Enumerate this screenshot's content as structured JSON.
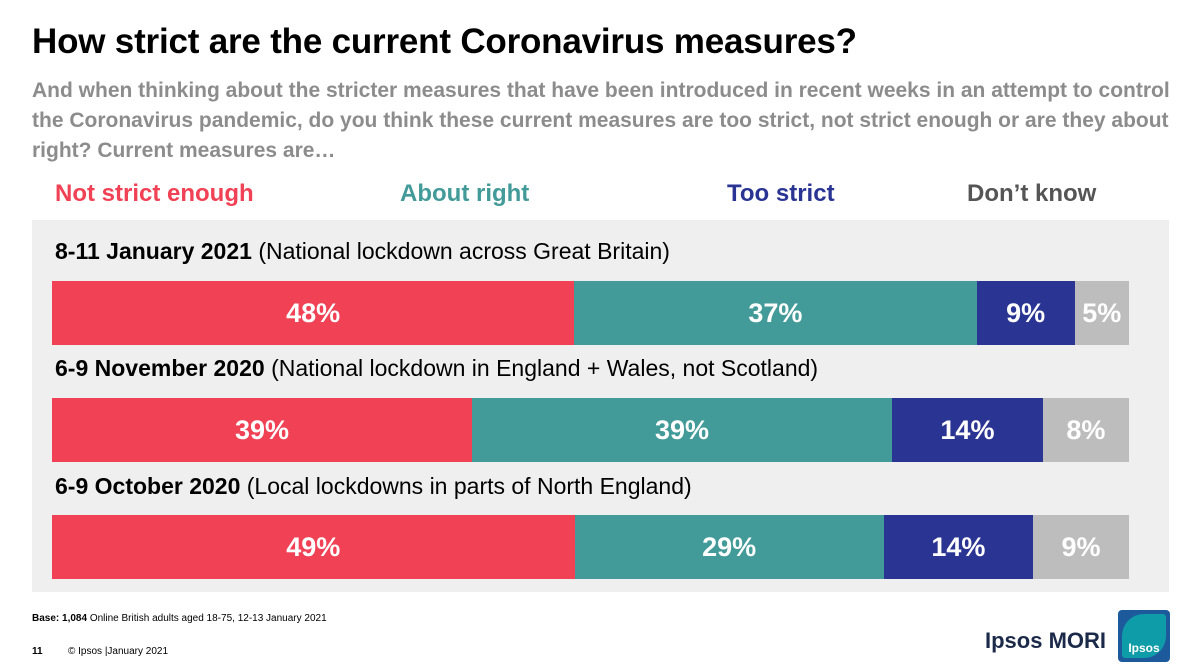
{
  "title": "How strict are the current Coronavirus measures?",
  "subtitle": "And when thinking about the stricter measures that have been introduced in recent weeks in an attempt to control the Coronavirus pandemic, do you think these current measures are too strict, not strict enough or are they about right? Current measures are…",
  "colors": {
    "not_strict_enough": "#f04155",
    "about_right": "#429b99",
    "too_strict": "#2a3593",
    "dont_know": "#bdbdbd",
    "dont_know_label": "#555555",
    "panel_bg": "#efefef"
  },
  "chart_data": {
    "type": "bar",
    "orientation": "horizontal",
    "stacked": true,
    "unit": "%",
    "legend_position": "top",
    "categories": [
      {
        "bold": "8-11 January 2021",
        "note": "(National lockdown across Great Britain)"
      },
      {
        "bold": "6-9 November 2020",
        "note": "(National lockdown in England + Wales, not Scotland)"
      },
      {
        "bold": "6-9 October 2020",
        "note": "(Local lockdowns in parts of North England)"
      }
    ],
    "series": [
      {
        "name": "Not strict enough",
        "values": [
          48,
          39,
          49
        ],
        "labels": [
          "48%",
          "39%",
          "49%"
        ]
      },
      {
        "name": "About right",
        "values": [
          37,
          39,
          29
        ],
        "labels": [
          "37%",
          "39%",
          "29%"
        ]
      },
      {
        "name": "Too strict",
        "values": [
          9,
          14,
          14
        ],
        "labels": [
          "9%",
          "14%",
          "14%"
        ]
      },
      {
        "name": "Don’t know",
        "values": [
          5,
          8,
          9
        ],
        "labels": [
          "5%",
          "8%",
          "9%"
        ]
      }
    ]
  },
  "footer": {
    "base_bold": "Base: 1,084",
    "base_text": " Online British adults aged 18-75, 12-13 January 2021",
    "page_number": "11",
    "copyright": "© Ipsos |January 2021",
    "brand": "Ipsos MORI",
    "logo_text": "Ipsos"
  }
}
